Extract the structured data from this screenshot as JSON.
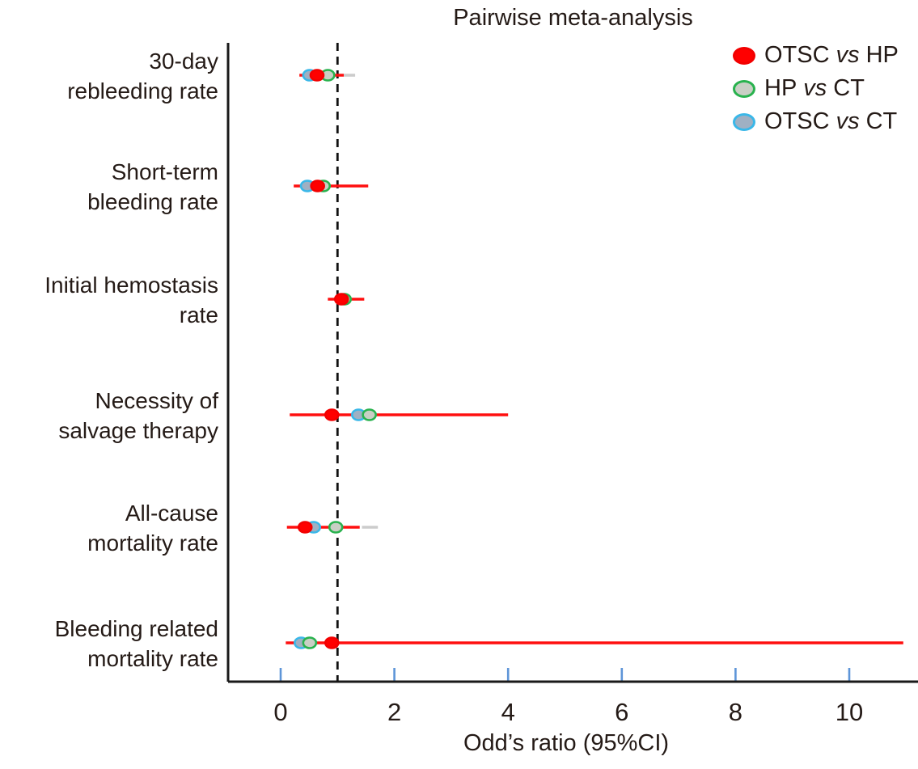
{
  "chart_data": {
    "type": "forest",
    "title": "Pairwise meta-analysis",
    "xlabel": "Odd’s ratio (95%CI)",
    "x_ticks": [
      0,
      2,
      4,
      6,
      8,
      10
    ],
    "x_axis_range": [
      -0.92,
      11.2
    ],
    "reference_line": 1.0,
    "legend_position": "top-right",
    "grid": false,
    "colors": {
      "red_line": "#ff0f0f",
      "gray_line": "#cccccc",
      "axis": "#1a1a1a",
      "tick": "#5e95d8",
      "text": "#241a16",
      "reference": "#111111"
    },
    "series": [
      {
        "id": "otsc_hp",
        "legend": {
          "a": "OTSC",
          "vs": "vs",
          "b": "HP"
        },
        "marker_fill": "#ff0000",
        "marker_stroke": "#f20000"
      },
      {
        "id": "hp_ct",
        "legend": {
          "a": "HP",
          "vs": "vs",
          "b": "CT"
        },
        "marker_fill": "#c9cfc5",
        "marker_stroke": "#29b24e"
      },
      {
        "id": "otsc_ct",
        "legend": {
          "a": "OTSC",
          "vs": "vs",
          "b": "CT"
        },
        "marker_fill": "#9fb0c3",
        "marker_stroke": "#3ab7e8"
      }
    ],
    "rows": [
      {
        "label": [
          "30-day",
          "rebleeding rate"
        ],
        "points": [
          {
            "series": "otsc_ct",
            "or": 0.51
          },
          {
            "series": "hp_ct",
            "or": 0.83
          },
          {
            "series": "otsc_hp",
            "or": 0.64
          }
        ],
        "ci_segments": [
          {
            "color": "red",
            "from": 0.33,
            "to": 1.11
          },
          {
            "color": "gray",
            "from": 1.11,
            "to": 1.31
          }
        ]
      },
      {
        "label": [
          "Short-term",
          "bleeding rate"
        ],
        "points": [
          {
            "series": "otsc_ct",
            "or": 0.47
          },
          {
            "series": "hp_ct",
            "or": 0.75
          },
          {
            "series": "otsc_hp",
            "or": 0.65
          }
        ],
        "ci_segments": [
          {
            "color": "red",
            "from": 0.23,
            "to": 1.54
          }
        ]
      },
      {
        "label": [
          "Initial hemostasis",
          "rate"
        ],
        "points": [
          {
            "series": "hp_ct",
            "or": 1.12
          },
          {
            "series": "otsc_hp",
            "or": 1.07
          }
        ],
        "ci_segments": [
          {
            "color": "red",
            "from": 0.83,
            "to": 1.47
          }
        ]
      },
      {
        "label": [
          "Necessity of",
          "salvage therapy"
        ],
        "points": [
          {
            "series": "otsc_ct",
            "or": 1.37
          },
          {
            "series": "hp_ct",
            "or": 1.56
          },
          {
            "series": "otsc_hp",
            "or": 0.9
          }
        ],
        "ci_segments": [
          {
            "color": "red",
            "from": 0.16,
            "to": 4.0
          }
        ]
      },
      {
        "label": [
          "All-cause",
          "mortality rate"
        ],
        "points": [
          {
            "series": "otsc_ct",
            "or": 0.58
          },
          {
            "series": "hp_ct",
            "or": 0.97
          },
          {
            "series": "otsc_hp",
            "or": 0.43
          }
        ],
        "ci_segments": [
          {
            "color": "red",
            "from": 0.11,
            "to": 1.39
          },
          {
            "color": "gray",
            "from": 1.43,
            "to": 1.71
          }
        ]
      },
      {
        "label": [
          "Bleeding related",
          "mortality rate"
        ],
        "points": [
          {
            "series": "otsc_ct",
            "or": 0.36
          },
          {
            "series": "hp_ct",
            "or": 0.51
          },
          {
            "series": "otsc_hp",
            "or": 0.9
          }
        ],
        "ci_segments": [
          {
            "color": "red",
            "from": 0.09,
            "to": 10.95
          }
        ]
      }
    ]
  }
}
